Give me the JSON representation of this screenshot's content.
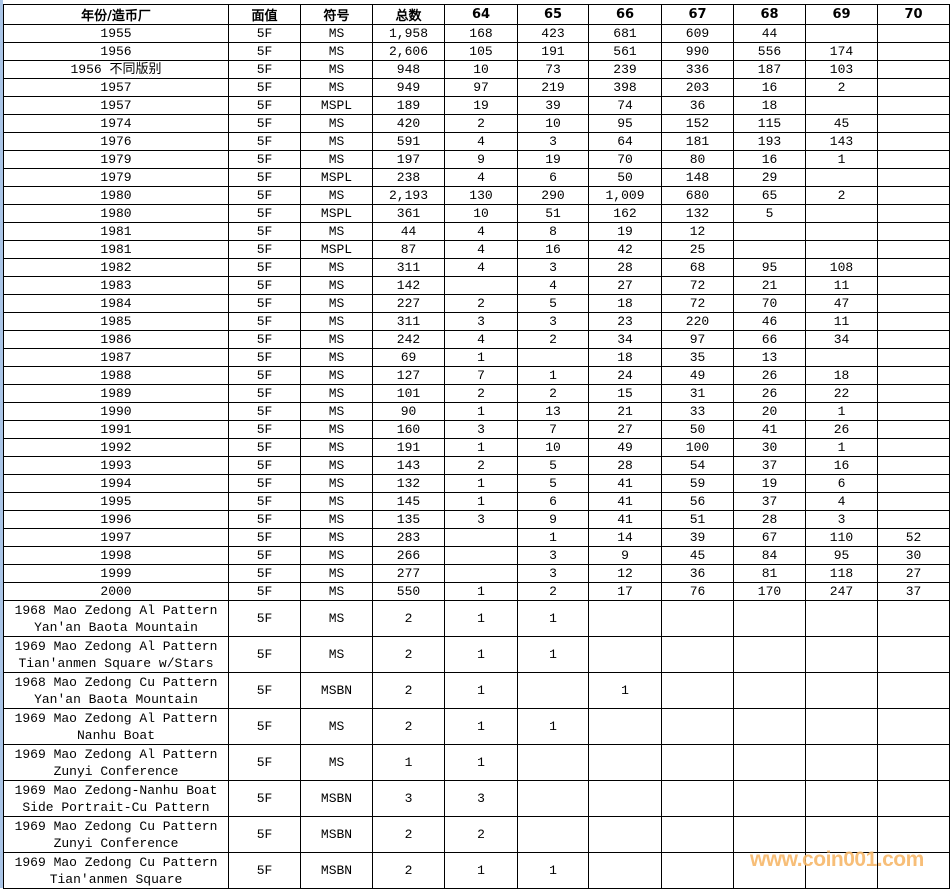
{
  "headers": [
    "年份/造币厂",
    "面值",
    "符号",
    "总数",
    "64",
    "65",
    "66",
    "67",
    "68",
    "69",
    "70"
  ],
  "rows": [
    [
      "1955",
      "5F",
      "MS",
      "1,958",
      "168",
      "423",
      "681",
      "609",
      "44",
      "",
      ""
    ],
    [
      "1956",
      "5F",
      "MS",
      "2,606",
      "105",
      "191",
      "561",
      "990",
      "556",
      "174",
      ""
    ],
    [
      "1956 不同版别",
      "5F",
      "MS",
      "948",
      "10",
      "73",
      "239",
      "336",
      "187",
      "103",
      ""
    ],
    [
      "1957",
      "5F",
      "MS",
      "949",
      "97",
      "219",
      "398",
      "203",
      "16",
      "2",
      ""
    ],
    [
      "1957",
      "5F",
      "MSPL",
      "189",
      "19",
      "39",
      "74",
      "36",
      "18",
      "",
      ""
    ],
    [
      "1974",
      "5F",
      "MS",
      "420",
      "2",
      "10",
      "95",
      "152",
      "115",
      "45",
      ""
    ],
    [
      "1976",
      "5F",
      "MS",
      "591",
      "4",
      "3",
      "64",
      "181",
      "193",
      "143",
      ""
    ],
    [
      "1979",
      "5F",
      "MS",
      "197",
      "9",
      "19",
      "70",
      "80",
      "16",
      "1",
      ""
    ],
    [
      "1979",
      "5F",
      "MSPL",
      "238",
      "4",
      "6",
      "50",
      "148",
      "29",
      "",
      ""
    ],
    [
      "1980",
      "5F",
      "MS",
      "2,193",
      "130",
      "290",
      "1,009",
      "680",
      "65",
      "2",
      ""
    ],
    [
      "1980",
      "5F",
      "MSPL",
      "361",
      "10",
      "51",
      "162",
      "132",
      "5",
      "",
      ""
    ],
    [
      "1981",
      "5F",
      "MS",
      "44",
      "4",
      "8",
      "19",
      "12",
      "",
      "",
      ""
    ],
    [
      "1981",
      "5F",
      "MSPL",
      "87",
      "4",
      "16",
      "42",
      "25",
      "",
      "",
      ""
    ],
    [
      "1982",
      "5F",
      "MS",
      "311",
      "4",
      "3",
      "28",
      "68",
      "95",
      "108",
      ""
    ],
    [
      "1983",
      "5F",
      "MS",
      "142",
      "",
      "4",
      "27",
      "72",
      "21",
      "11",
      ""
    ],
    [
      "1984",
      "5F",
      "MS",
      "227",
      "2",
      "5",
      "18",
      "72",
      "70",
      "47",
      ""
    ],
    [
      "1985",
      "5F",
      "MS",
      "311",
      "3",
      "3",
      "23",
      "220",
      "46",
      "11",
      ""
    ],
    [
      "1986",
      "5F",
      "MS",
      "242",
      "4",
      "2",
      "34",
      "97",
      "66",
      "34",
      ""
    ],
    [
      "1987",
      "5F",
      "MS",
      "69",
      "1",
      "",
      "18",
      "35",
      "13",
      "",
      ""
    ],
    [
      "1988",
      "5F",
      "MS",
      "127",
      "7",
      "1",
      "24",
      "49",
      "26",
      "18",
      ""
    ],
    [
      "1989",
      "5F",
      "MS",
      "101",
      "2",
      "2",
      "15",
      "31",
      "26",
      "22",
      ""
    ],
    [
      "1990",
      "5F",
      "MS",
      "90",
      "1",
      "13",
      "21",
      "33",
      "20",
      "1",
      ""
    ],
    [
      "1991",
      "5F",
      "MS",
      "160",
      "3",
      "7",
      "27",
      "50",
      "41",
      "26",
      ""
    ],
    [
      "1992",
      "5F",
      "MS",
      "191",
      "1",
      "10",
      "49",
      "100",
      "30",
      "1",
      ""
    ],
    [
      "1993",
      "5F",
      "MS",
      "143",
      "2",
      "5",
      "28",
      "54",
      "37",
      "16",
      ""
    ],
    [
      "1994",
      "5F",
      "MS",
      "132",
      "1",
      "5",
      "41",
      "59",
      "19",
      "6",
      ""
    ],
    [
      "1995",
      "5F",
      "MS",
      "145",
      "1",
      "6",
      "41",
      "56",
      "37",
      "4",
      ""
    ],
    [
      "1996",
      "5F",
      "MS",
      "135",
      "3",
      "9",
      "41",
      "51",
      "28",
      "3",
      ""
    ],
    [
      "1997",
      "5F",
      "MS",
      "283",
      "",
      "1",
      "14",
      "39",
      "67",
      "110",
      "52"
    ],
    [
      "1998",
      "5F",
      "MS",
      "266",
      "",
      "3",
      "9",
      "45",
      "84",
      "95",
      "30"
    ],
    [
      "1999",
      "5F",
      "MS",
      "277",
      "",
      "3",
      "12",
      "36",
      "81",
      "118",
      "27"
    ],
    [
      "2000",
      "5F",
      "MS",
      "550",
      "1",
      "2",
      "17",
      "76",
      "170",
      "247",
      "37"
    ]
  ],
  "pattern_rows": [
    [
      "1968 Mao Zedong Al Pattern Yan'an Baota Mountain",
      "5F",
      "MS",
      "2",
      "1",
      "1",
      "",
      "",
      "",
      "",
      ""
    ],
    [
      "1969 Mao Zedong Al Pattern Tian'anmen Square w/Stars",
      "5F",
      "MS",
      "2",
      "1",
      "1",
      "",
      "",
      "",
      "",
      ""
    ],
    [
      "1968 Mao Zedong Cu Pattern Yan'an Baota Mountain",
      "5F",
      "MSBN",
      "2",
      "1",
      "",
      "1",
      "",
      "",
      "",
      ""
    ],
    [
      "1969 Mao Zedong Al Pattern Nanhu Boat",
      "5F",
      "MS",
      "2",
      "1",
      "1",
      "",
      "",
      "",
      "",
      ""
    ],
    [
      "1969 Mao Zedong Al Pattern Zunyi Conference",
      "5F",
      "MS",
      "1",
      "1",
      "",
      "",
      "",
      "",
      "",
      ""
    ],
    [
      "1969 Mao Zedong-Nanhu Boat Side Portrait-Cu Pattern",
      "5F",
      "MSBN",
      "3",
      "3",
      "",
      "",
      "",
      "",
      "",
      ""
    ],
    [
      "1969 Mao Zedong Cu Pattern Zunyi Conference",
      "5F",
      "MSBN",
      "2",
      "2",
      "",
      "",
      "",
      "",
      "",
      ""
    ],
    [
      "1969 Mao Zedong Cu Pattern Tian'anmen Square",
      "5F",
      "MSBN",
      "2",
      "1",
      "1",
      "",
      "",
      "",
      "",
      ""
    ]
  ],
  "watermark": "www.coin001.com",
  "colors": {
    "watermark": "#f7b86a",
    "grid": "#000000",
    "window_edge": "#a9c4e6"
  }
}
